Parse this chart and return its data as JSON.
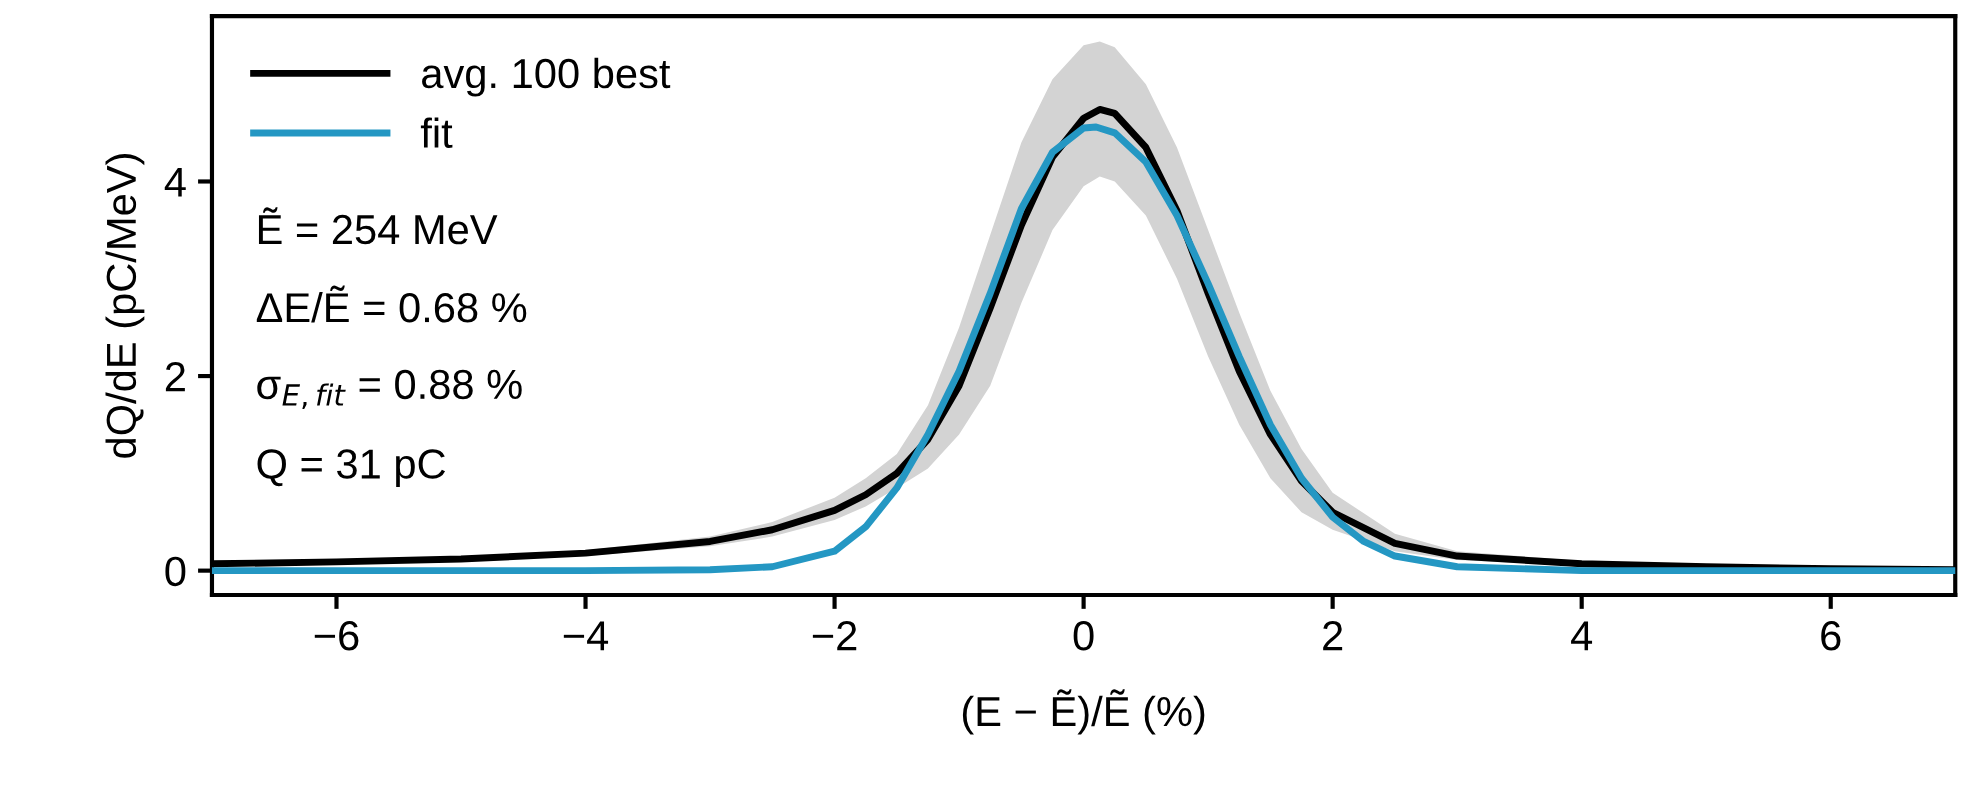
{
  "chart_data": {
    "type": "line",
    "xlabel": "(E − Ẽ)/Ẽ (%)",
    "ylabel": "dQ/dE (pC/MeV)",
    "xlim": [
      -7,
      7
    ],
    "ylim": [
      -0.25,
      5.7
    ],
    "xticks": [
      {
        "value": -6,
        "label": "−6"
      },
      {
        "value": -4,
        "label": "−4"
      },
      {
        "value": -2,
        "label": "−2"
      },
      0,
      2,
      4,
      6
    ],
    "yticks": [
      0,
      2,
      4
    ],
    "grid": false,
    "legend": "top left",
    "line_style": "solid",
    "marker": "none",
    "series": [
      {
        "name": "avg. 100 best",
        "color": "#000000",
        "x": [
          -7,
          -6,
          -5,
          -4,
          -3,
          -2.5,
          -2,
          -1.75,
          -1.5,
          -1.25,
          -1,
          -0.75,
          -0.5,
          -0.25,
          0,
          0.13,
          0.25,
          0.5,
          0.75,
          1,
          1.25,
          1.5,
          1.75,
          2,
          2.5,
          3,
          4,
          5,
          6,
          7
        ],
        "values": [
          0.07,
          0.09,
          0.12,
          0.18,
          0.3,
          0.42,
          0.62,
          0.78,
          1.0,
          1.35,
          1.9,
          2.7,
          3.55,
          4.25,
          4.65,
          4.74,
          4.7,
          4.35,
          3.7,
          2.85,
          2.05,
          1.4,
          0.92,
          0.6,
          0.28,
          0.15,
          0.07,
          0.04,
          0.02,
          0.01
        ],
        "lower": [
          0.06,
          0.08,
          0.1,
          0.15,
          0.25,
          0.35,
          0.52,
          0.66,
          0.85,
          1.05,
          1.4,
          1.9,
          2.75,
          3.5,
          3.95,
          4.05,
          4.0,
          3.65,
          3.0,
          2.2,
          1.5,
          0.95,
          0.6,
          0.42,
          0.2,
          0.11,
          0.05,
          0.03,
          0.01,
          0.0
        ],
        "upper": [
          0.08,
          0.1,
          0.14,
          0.21,
          0.35,
          0.5,
          0.75,
          0.95,
          1.2,
          1.7,
          2.5,
          3.45,
          4.4,
          5.05,
          5.4,
          5.44,
          5.38,
          5.0,
          4.35,
          3.5,
          2.65,
          1.85,
          1.25,
          0.8,
          0.38,
          0.2,
          0.1,
          0.06,
          0.03,
          0.02
        ]
      },
      {
        "name": "fit",
        "color": "#2497c3",
        "x": [
          -7,
          -4,
          -3,
          -2.5,
          -2,
          -1.75,
          -1.5,
          -1.25,
          -1,
          -0.75,
          -0.5,
          -0.25,
          0,
          0.1,
          0.25,
          0.5,
          0.75,
          1,
          1.25,
          1.5,
          1.75,
          2,
          2.25,
          2.5,
          3,
          4,
          7
        ],
        "values": [
          0,
          0,
          0.01,
          0.04,
          0.2,
          0.45,
          0.85,
          1.4,
          2.05,
          2.85,
          3.72,
          4.3,
          4.55,
          4.56,
          4.5,
          4.2,
          3.65,
          2.95,
          2.2,
          1.5,
          0.95,
          0.55,
          0.3,
          0.15,
          0.04,
          0.0,
          0
        ]
      }
    ],
    "annotations": [
      "Ẽ = 254 MeV",
      "ΔE/Ẽ = 0.68 %",
      "σ$_{E,fit}$ = 0.88 %",
      "Q = 31 pC"
    ]
  }
}
